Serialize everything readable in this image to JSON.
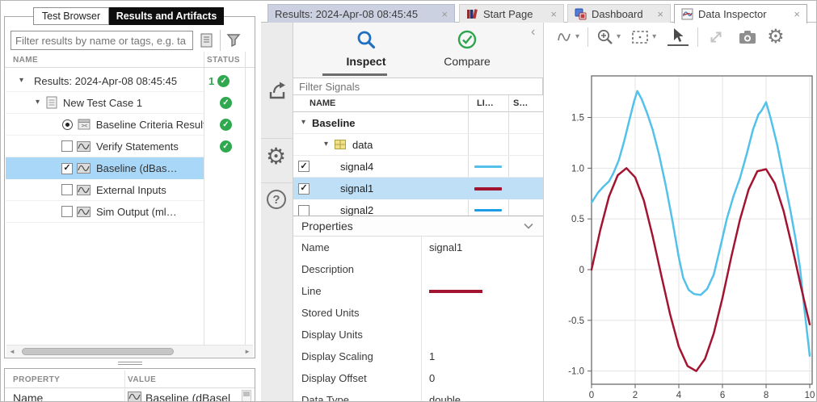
{
  "icons": {
    "check": "✓",
    "close": "×",
    "caret_down": "▾",
    "chevron_left": "‹",
    "gear": "⚙",
    "help": "?",
    "scroll_left": "◄",
    "scroll_right": "►"
  },
  "left_panel": {
    "tabs": [
      {
        "label": "Test Browser"
      },
      {
        "label": "Results and Artifacts"
      }
    ],
    "filter_placeholder": "Filter results by name or tags, e.g. ta",
    "columns": {
      "name": "NAME",
      "status": "STATUS"
    },
    "tree": [
      {
        "label": "Results: 2024-Apr-08 08:45:45",
        "badge": "1"
      },
      {
        "label": "New Test Case 1"
      },
      {
        "label": "Baseline Criteria Result"
      },
      {
        "label": "Verify Statements"
      },
      {
        "label": "Baseline (dBas…"
      },
      {
        "label": "External Inputs"
      },
      {
        "label": "Sim Output (ml…"
      }
    ],
    "property_table": {
      "columns": {
        "property": "PROPERTY",
        "value": "VALUE"
      },
      "rows": [
        {
          "property": "Name",
          "value": "Baseline (dBasel"
        }
      ]
    }
  },
  "doc_tabs": [
    {
      "label": "Results: 2024-Apr-08 08:45:45"
    },
    {
      "label": "Start Page"
    },
    {
      "label": "Dashboard"
    },
    {
      "label": "Data Inspector"
    }
  ],
  "inspector": {
    "tabs": [
      {
        "label": "Inspect"
      },
      {
        "label": "Compare"
      }
    ],
    "filter_placeholder": "Filter Signals",
    "columns": {
      "name": "NAME",
      "line": "LI…",
      "sync": "S…"
    },
    "group": "Baseline",
    "subgroup": "data",
    "signals": [
      {
        "name": "signal4",
        "checked": true,
        "color": "#53c1ea"
      },
      {
        "name": "signal1",
        "checked": true,
        "color": "#a2142f"
      },
      {
        "name": "signal2",
        "checked": false,
        "color": "#1b9ce8"
      }
    ],
    "properties": {
      "title": "Properties",
      "rows": [
        {
          "label": "Name",
          "value": "signal1"
        },
        {
          "label": "Description",
          "value": ""
        },
        {
          "label": "Line",
          "value": ""
        },
        {
          "label": "Stored Units",
          "value": ""
        },
        {
          "label": "Display Units",
          "value": ""
        },
        {
          "label": "Display Scaling",
          "value": "1"
        },
        {
          "label": "Display Offset",
          "value": "0"
        },
        {
          "label": "Data Type",
          "value": "double"
        }
      ]
    }
  },
  "chart_data": {
    "type": "line",
    "title": "",
    "xlabel": "",
    "ylabel": "",
    "xlim": [
      0,
      10.11
    ],
    "ylim": [
      -1.13,
      1.91
    ],
    "xticks": [
      0,
      2,
      4,
      6,
      8,
      10
    ],
    "yticks": [
      -1.0,
      -0.5,
      0,
      0.5,
      1.0,
      1.5
    ],
    "ytick_labels": [
      "-1.0",
      "-0.5",
      "0",
      "0.5",
      "1.0",
      "1.5"
    ],
    "grid": true,
    "legend_position": "top",
    "series": [
      {
        "name": "signal4",
        "color": "#53c1ea",
        "points": [
          [
            0,
            0.66
          ],
          [
            0.3,
            0.76
          ],
          [
            0.55,
            0.82
          ],
          [
            0.8,
            0.87
          ],
          [
            1.0,
            0.95
          ],
          [
            1.25,
            1.08
          ],
          [
            1.5,
            1.27
          ],
          [
            1.75,
            1.49
          ],
          [
            1.95,
            1.66
          ],
          [
            2.1,
            1.76
          ],
          [
            2.3,
            1.68
          ],
          [
            2.55,
            1.54
          ],
          [
            2.8,
            1.38
          ],
          [
            3.1,
            1.13
          ],
          [
            3.4,
            0.83
          ],
          [
            3.7,
            0.49
          ],
          [
            4.0,
            0.12
          ],
          [
            4.2,
            -0.08
          ],
          [
            4.45,
            -0.2
          ],
          [
            4.7,
            -0.24
          ],
          [
            5.0,
            -0.25
          ],
          [
            5.3,
            -0.19
          ],
          [
            5.6,
            -0.05
          ],
          [
            5.9,
            0.22
          ],
          [
            6.2,
            0.5
          ],
          [
            6.5,
            0.72
          ],
          [
            6.8,
            0.9
          ],
          [
            7.1,
            1.13
          ],
          [
            7.4,
            1.38
          ],
          [
            7.65,
            1.53
          ],
          [
            7.8,
            1.57
          ],
          [
            8.0,
            1.65
          ],
          [
            8.2,
            1.5
          ],
          [
            8.5,
            1.24
          ],
          [
            8.8,
            0.92
          ],
          [
            9.1,
            0.6
          ],
          [
            9.35,
            0.3
          ],
          [
            9.55,
            0.02
          ],
          [
            9.75,
            -0.38
          ],
          [
            10,
            -0.85
          ]
        ]
      },
      {
        "name": "signal1",
        "color": "#a2142f",
        "points": [
          [
            0,
            0
          ],
          [
            0.4,
            0.39
          ],
          [
            0.8,
            0.72
          ],
          [
            1.2,
            0.93
          ],
          [
            1.6,
            1.0
          ],
          [
            2.0,
            0.91
          ],
          [
            2.4,
            0.68
          ],
          [
            2.8,
            0.33
          ],
          [
            3.2,
            -0.06
          ],
          [
            3.6,
            -0.44
          ],
          [
            4.0,
            -0.76
          ],
          [
            4.4,
            -0.95
          ],
          [
            4.8,
            -1.0
          ],
          [
            5.2,
            -0.88
          ],
          [
            5.6,
            -0.63
          ],
          [
            6.0,
            -0.28
          ],
          [
            6.4,
            0.12
          ],
          [
            6.8,
            0.49
          ],
          [
            7.2,
            0.79
          ],
          [
            7.6,
            0.97
          ],
          [
            8.0,
            0.99
          ],
          [
            8.4,
            0.85
          ],
          [
            8.8,
            0.58
          ],
          [
            9.2,
            0.22
          ],
          [
            9.6,
            -0.17
          ],
          [
            10,
            -0.54
          ]
        ]
      }
    ]
  }
}
